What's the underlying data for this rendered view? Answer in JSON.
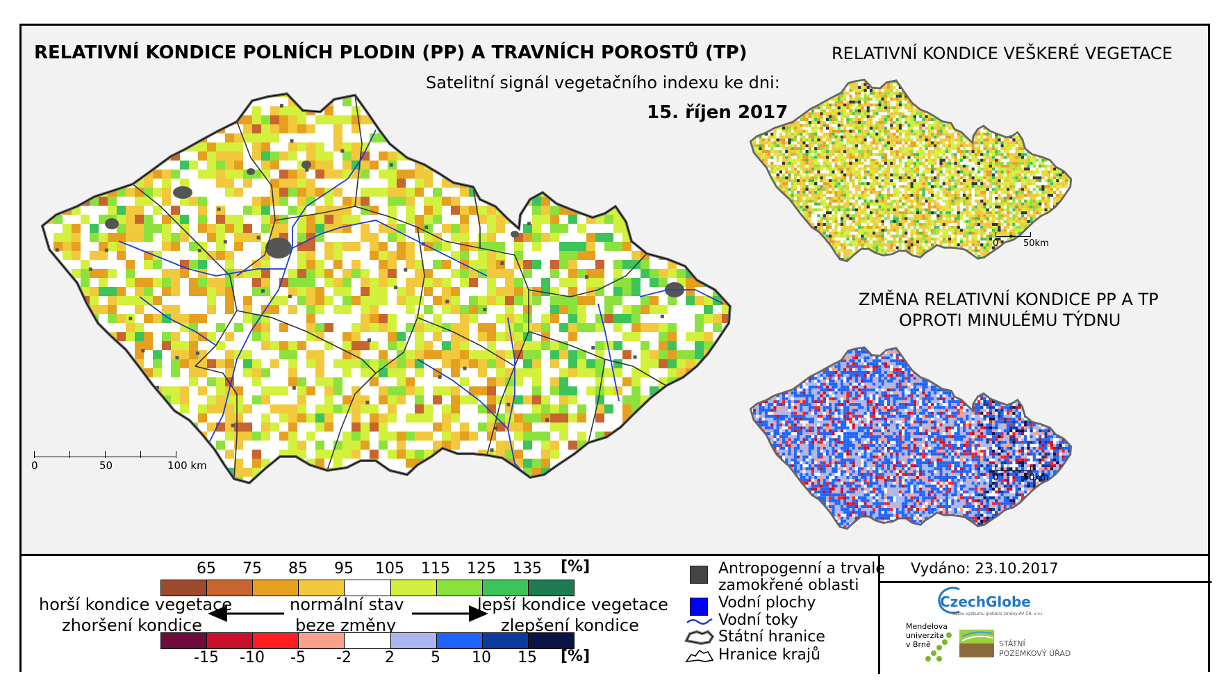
{
  "header": {
    "main_title": "RELATIVNÍ KONDICE POLNÍCH PLODIN (PP) A TRAVNÍCH POROSTŮ (TP)",
    "subtitle": "Satelitní signál vegetačního indexu ke dni:",
    "date": "15. říjen 2017",
    "right_title": "RELATIVNÍ KONDICE VEŠKERÉ VEGETACE",
    "change_title_line1": "ZMĚNA RELATIVNÍ KONDICE PP A TP",
    "change_title_line2": "OPROTI MINULÉMU TÝDNU"
  },
  "main_map": {
    "scale_labels": [
      "0",
      "50",
      "100 km"
    ]
  },
  "small_maps": {
    "scale_labels": [
      "0",
      "50km"
    ]
  },
  "legend": {
    "condition_labels": [
      "65",
      "75",
      "85",
      "95",
      "105",
      "115",
      "125",
      "135"
    ],
    "condition_unit": "[%]",
    "condition_colors": [
      "#9c4a2e",
      "#c8642f",
      "#e6a020",
      "#f2c83c",
      "#ffffff",
      "#d2f03c",
      "#8ce23c",
      "#3cc35a",
      "#1e7a50"
    ],
    "change_labels": [
      "-15",
      "-10",
      "-5",
      "-2",
      "2",
      "5",
      "10",
      "15"
    ],
    "change_unit": "[%]",
    "change_colors": [
      "#6e0a3c",
      "#c8102e",
      "#ff1e1e",
      "#f7a08c",
      "#ffffff",
      "#a8b8ee",
      "#1e64ff",
      "#0a3ca0",
      "#0a1446"
    ],
    "worse_line1": "horší kondice vegetace",
    "worse_line2": "zhoršení kondice",
    "normal_line1": "normální stav",
    "normal_line2": "beze změny",
    "better_line1": "lepší kondice vegetace",
    "better_line2": "zlepšení kondice"
  },
  "key": {
    "anthropogenic_line1": "Antropogenní a trvale",
    "anthropogenic_line2": "zamokřené oblasti",
    "water_bodies": "Vodní plochy",
    "rivers": "Vodní toky",
    "state_border": "Státní hranice",
    "region_border": "Hranice krajů"
  },
  "footer": {
    "issued": "Vydáno: 23.10.2017",
    "czechglobe": "CzechGlobe",
    "czechglobe_sub": "Ústav výzkumu globální změny AV ČR, v.v.i.",
    "mendelu_line1": "Mendelova",
    "mendelu_line2": "univerzita",
    "mendelu_line3": "v Brně",
    "spu_line1": "STÁTNÍ",
    "spu_line2": "POZEMKOVÝ ÚŘAD"
  }
}
